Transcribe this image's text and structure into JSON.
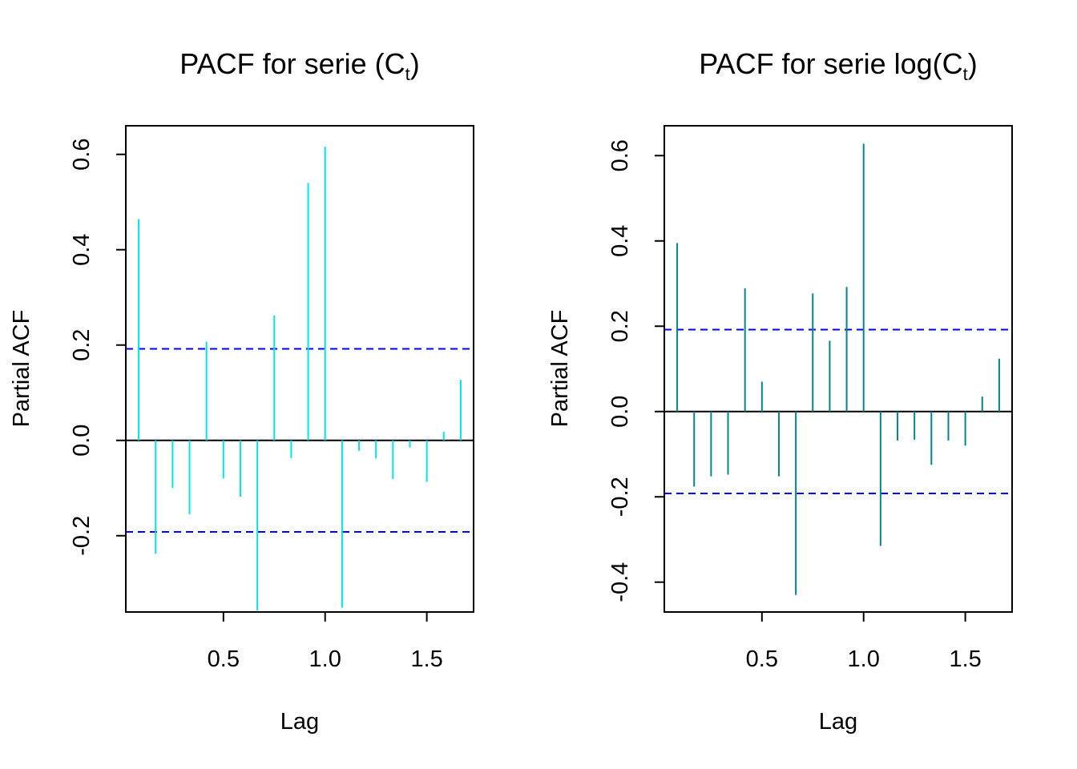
{
  "chart_data": [
    {
      "type": "bar",
      "title": {
        "main": "PACF for serie (C",
        "sub": "t",
        "end": ")"
      },
      "xlabel": "Lag",
      "ylabel": "Partial ACF",
      "xlim": [
        0.0833,
        1.6667
      ],
      "ylim": [
        -0.36,
        0.66
      ],
      "xticks": [
        0.5,
        1.0,
        1.5
      ],
      "xtick_labels": [
        "0.5",
        "1.0",
        "1.5"
      ],
      "yticks": [
        -0.2,
        0.0,
        0.2,
        0.4,
        0.6
      ],
      "ytick_labels": [
        "-0.2",
        "0.0",
        "0.2",
        "0.4",
        "0.6"
      ],
      "ci": 0.192,
      "bar_color": "#00e5ee",
      "ci_color": "#0000ee",
      "x": [
        0.0833,
        0.1667,
        0.25,
        0.3333,
        0.4167,
        0.5,
        0.5833,
        0.6667,
        0.75,
        0.8333,
        0.9167,
        1.0,
        1.0833,
        1.1667,
        1.25,
        1.3333,
        1.4167,
        1.5,
        1.5833,
        1.6667
      ],
      "values": [
        0.464,
        -0.238,
        -0.1,
        -0.155,
        0.207,
        -0.08,
        -0.118,
        -0.357,
        0.262,
        -0.037,
        0.54,
        0.616,
        -0.351,
        -0.022,
        -0.038,
        -0.081,
        -0.015,
        -0.087,
        0.018,
        0.127
      ]
    },
    {
      "type": "bar",
      "title": {
        "main": "PACF for serie log(C",
        "sub": "t",
        "end": ")"
      },
      "xlabel": "Lag",
      "ylabel": "Partial ACF",
      "xlim": [
        0.0833,
        1.6667
      ],
      "ylim": [
        -0.47,
        0.67
      ],
      "xticks": [
        0.5,
        1.0,
        1.5
      ],
      "xtick_labels": [
        "0.5",
        "1.0",
        "1.5"
      ],
      "yticks": [
        -0.4,
        -0.2,
        0.0,
        0.2,
        0.4,
        0.6
      ],
      "ytick_labels": [
        "-0.4",
        "-0.2",
        "0.0",
        "0.2",
        "0.4",
        "0.6"
      ],
      "ci": 0.192,
      "bar_color": "#00868b",
      "ci_color": "#0000ee",
      "x": [
        0.0833,
        0.1667,
        0.25,
        0.3333,
        0.4167,
        0.5,
        0.5833,
        0.6667,
        0.75,
        0.8333,
        0.9167,
        1.0,
        1.0833,
        1.1667,
        1.25,
        1.3333,
        1.4167,
        1.5,
        1.5833,
        1.6667
      ],
      "values": [
        0.395,
        -0.176,
        -0.152,
        -0.148,
        0.289,
        0.07,
        -0.152,
        -0.43,
        0.277,
        0.166,
        0.292,
        0.628,
        -0.315,
        -0.068,
        -0.066,
        -0.125,
        -0.068,
        -0.08,
        0.035,
        0.124
      ]
    }
  ]
}
